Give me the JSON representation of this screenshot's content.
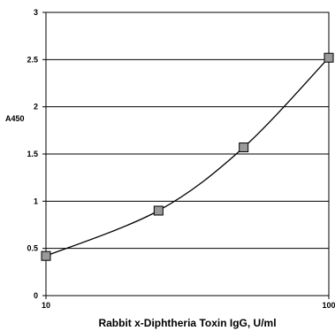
{
  "chart_data": {
    "type": "line",
    "title": "",
    "xlabel": "Rabbit x-Diphtheria Toxin IgG, U/ml",
    "ylabel": "A450",
    "xscale": "log",
    "xlim": [
      10,
      100
    ],
    "ylim": [
      0,
      3
    ],
    "xticks": [
      "10",
      "100"
    ],
    "yticks": [
      "0",
      "0.5",
      "1",
      "1.5",
      "2",
      "2.5",
      "3"
    ],
    "grid": "horizontal",
    "legend": "none",
    "line_color": "#000000",
    "marker": "square",
    "marker_color": "#999999",
    "series": [
      {
        "x": [
          10,
          25,
          50,
          100
        ],
        "y": [
          0.42,
          0.9,
          1.57,
          2.52
        ]
      }
    ]
  }
}
